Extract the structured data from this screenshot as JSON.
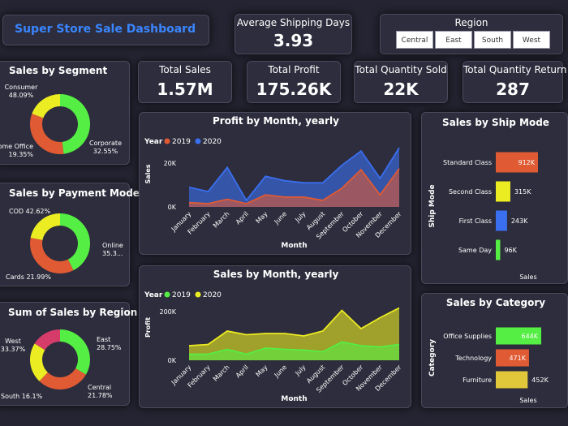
{
  "header": {
    "title": "Super Store Sale Dashboard",
    "title_color": "#3a86ff"
  },
  "kpis": {
    "avg_shipping": {
      "label": "Average Shipping Days",
      "value": "3.93"
    },
    "total_sales": {
      "label": "Total Sales",
      "value": "1.57M"
    },
    "total_profit": {
      "label": "Total Profit",
      "value": "175.26K"
    },
    "total_qty_sold": {
      "label": "Total Quantity Sold",
      "value": "22K"
    },
    "total_qty_return": {
      "label": "Total Quantity Return",
      "value": "287"
    }
  },
  "region_slicer": {
    "title": "Region",
    "options": [
      "Central",
      "East",
      "South",
      "West"
    ]
  },
  "colors": {
    "green": "#55ee44",
    "orange": "#e05a33",
    "yellow": "#ecec22",
    "pink": "#d63c6a",
    "blue": "#3a6ff0",
    "gold": "#e0c83a"
  },
  "donuts": {
    "segment": {
      "title": "Sales by Segment",
      "labels": [
        {
          "name": "Consumer",
          "pct": "48.09%"
        },
        {
          "name": "Corporate",
          "pct": "32.55%"
        },
        {
          "name": "Home Office",
          "pct": "19.35%"
        }
      ]
    },
    "payment": {
      "title": "Sales by Payment Mode",
      "labels": [
        {
          "name": "COD",
          "pct": "42.62%"
        },
        {
          "name": "Online",
          "pct": "35.3..."
        },
        {
          "name": "Cards",
          "pct": "21.99%"
        }
      ]
    },
    "region": {
      "title": "Sum of Sales by Region",
      "labels": [
        {
          "name": "West",
          "pct": "33.37%"
        },
        {
          "name": "East",
          "pct": "28.75%"
        },
        {
          "name": "Central",
          "pct": "21.78%"
        },
        {
          "name": "South",
          "pct": "16.1%"
        }
      ]
    }
  },
  "chart_data": [
    {
      "type": "pie",
      "variant": "donut",
      "title": "Sales by Segment",
      "categories": [
        "Consumer",
        "Corporate",
        "Home Office"
      ],
      "values": [
        48.09,
        32.55,
        19.35
      ],
      "colors": [
        "#55ee44",
        "#e05a33",
        "#ecec22"
      ]
    },
    {
      "type": "pie",
      "variant": "donut",
      "title": "Sales by Payment Mode",
      "categories": [
        "COD",
        "Online",
        "Cards"
      ],
      "values": [
        42.62,
        35.39,
        21.99
      ],
      "colors": [
        "#55ee44",
        "#e05a33",
        "#ecec22"
      ]
    },
    {
      "type": "pie",
      "variant": "donut",
      "title": "Sum of Sales by Region",
      "categories": [
        "West",
        "East",
        "Central",
        "South"
      ],
      "values": [
        33.37,
        28.75,
        21.78,
        16.1
      ],
      "colors": [
        "#55ee44",
        "#e05a33",
        "#ecec22",
        "#d63c6a"
      ]
    },
    {
      "type": "area",
      "title": "Profit by Month, yearly",
      "legend_title": "Year",
      "xlabel": "Month",
      "ylabel": "Sales",
      "categories": [
        "January",
        "February",
        "March",
        "April",
        "May",
        "June",
        "July",
        "August",
        "September",
        "October",
        "November",
        "December"
      ],
      "yticks": [
        "0K",
        "20K"
      ],
      "ylim": [
        0,
        30000
      ],
      "series": [
        {
          "name": "2019",
          "color": "#e05a33",
          "values": [
            2000,
            1500,
            3500,
            1500,
            5500,
            4500,
            4500,
            3000,
            8500,
            17000,
            5500,
            17500
          ]
        },
        {
          "name": "2020",
          "color": "#3a6ff0",
          "values": [
            9000,
            7000,
            18000,
            3000,
            14000,
            12000,
            11000,
            11000,
            19000,
            25500,
            13000,
            27000
          ]
        }
      ]
    },
    {
      "type": "area",
      "title": "Sales by Month, yearly",
      "legend_title": "Year",
      "xlabel": "Month",
      "ylabel": "Profit",
      "categories": [
        "January",
        "February",
        "March",
        "April",
        "May",
        "June",
        "July",
        "August",
        "September",
        "October",
        "November",
        "December"
      ],
      "yticks": [
        "0K",
        "200K"
      ],
      "ylim": [
        0,
        270000
      ],
      "series": [
        {
          "name": "2019",
          "color": "#55ee44",
          "values": [
            25000,
            25000,
            45000,
            25000,
            50000,
            45000,
            42000,
            35000,
            75000,
            60000,
            55000,
            65000
          ]
        },
        {
          "name": "2020",
          "color": "#ecec22",
          "values": [
            60000,
            65000,
            120000,
            105000,
            110000,
            110000,
            100000,
            120000,
            205000,
            130000,
            175000,
            215000
          ]
        }
      ]
    },
    {
      "type": "bar",
      "orientation": "horizontal",
      "title": "Sales by Ship Mode",
      "xlabel": "Sales",
      "ylabel": "Ship Mode",
      "categories": [
        "Standard Class",
        "Second Class",
        "First Class",
        "Same Day"
      ],
      "values": [
        912,
        315,
        243,
        96
      ],
      "value_labels": [
        "912K",
        "315K",
        "243K",
        "96K"
      ],
      "colors": [
        "#e05a33",
        "#ecec22",
        "#3a6ff0",
        "#55ee44"
      ]
    },
    {
      "type": "bar",
      "orientation": "horizontal",
      "title": "Sales by Category",
      "xlabel": "Sales",
      "ylabel": "Category",
      "categories": [
        "Office Supplies",
        "Technology",
        "Furniture"
      ],
      "values": [
        644,
        471,
        452
      ],
      "value_labels": [
        "644K",
        "471K",
        "452K"
      ],
      "colors": [
        "#55ee44",
        "#e05a33",
        "#e0c83a"
      ]
    }
  ]
}
